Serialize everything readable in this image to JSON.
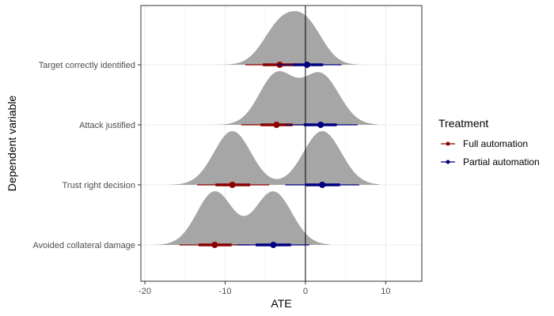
{
  "chart_data": {
    "type": "ridgeline-interval",
    "xlabel": "ATE",
    "ylabel": "Dependent variable",
    "xlim": [
      -20.5,
      14.5
    ],
    "x_ticks": [
      -20,
      -10,
      0,
      10
    ],
    "x_tick_labels": [
      "-20",
      "-10",
      "0",
      "10"
    ],
    "grid": true,
    "reference_line_x": 0,
    "categories": [
      "Target correctly identified",
      "Attack justified",
      "Trust right decision",
      "Avoided collateral damage"
    ],
    "density_color": "#a6a6a6",
    "legend": {
      "title": "Treatment",
      "placement": "right"
    },
    "series": [
      {
        "name": "Full automation",
        "color": "#8b0000",
        "points": [
          {
            "category": "Target correctly identified",
            "estimate": -3.2,
            "ci66": [
              -5.3,
              -1.2
            ],
            "ci95": [
              -7.5,
              0.8
            ]
          },
          {
            "category": "Attack justified",
            "estimate": -3.6,
            "ci66": [
              -5.6,
              -1.6
            ],
            "ci95": [
              -8.0,
              0.5
            ]
          },
          {
            "category": "Trust right decision",
            "estimate": -9.1,
            "ci66": [
              -11.2,
              -6.9
            ],
            "ci95": [
              -13.5,
              -4.5
            ]
          },
          {
            "category": "Avoided collateral damage",
            "estimate": -11.3,
            "ci66": [
              -13.3,
              -9.2
            ],
            "ci95": [
              -15.7,
              -7.0
            ]
          }
        ]
      },
      {
        "name": "Partial automation",
        "color": "#000080",
        "points": [
          {
            "category": "Target correctly identified",
            "estimate": 0.2,
            "ci66": [
              -1.5,
              2.2
            ],
            "ci95": [
              -3.5,
              4.5
            ]
          },
          {
            "category": "Attack justified",
            "estimate": 1.9,
            "ci66": [
              -0.2,
              3.9
            ],
            "ci95": [
              -2.5,
              6.5
            ]
          },
          {
            "category": "Trust right decision",
            "estimate": 2.1,
            "ci66": [
              0.0,
              4.3
            ],
            "ci95": [
              -2.5,
              6.7
            ]
          },
          {
            "category": "Avoided collateral damage",
            "estimate": -4.0,
            "ci66": [
              -6.2,
              -1.8
            ],
            "ci95": [
              -8.5,
              0.5
            ]
          }
        ]
      }
    ]
  }
}
